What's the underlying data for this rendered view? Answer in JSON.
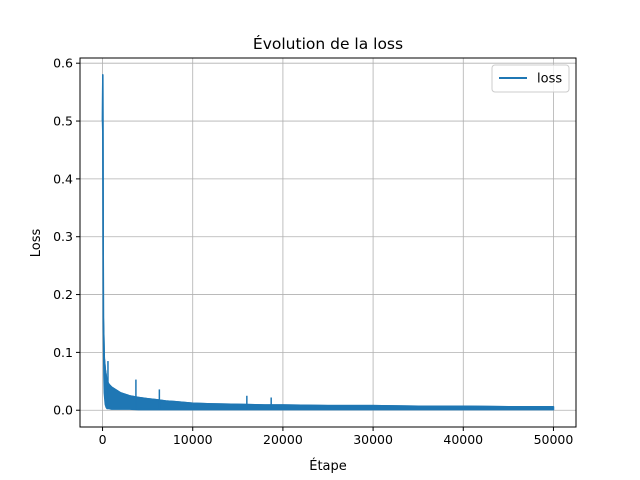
{
  "chart_data": {
    "type": "line",
    "title": "Évolution de la loss",
    "xlabel": "Étape",
    "ylabel": "Loss",
    "xlim": [
      -2500,
      52500
    ],
    "ylim": [
      -0.029,
      0.609
    ],
    "xticks": [
      0,
      10000,
      20000,
      30000,
      40000,
      50000
    ],
    "xtick_labels": [
      "0",
      "10000",
      "20000",
      "30000",
      "40000",
      "50000"
    ],
    "yticks": [
      0.0,
      0.1,
      0.2,
      0.3,
      0.4,
      0.5,
      0.6
    ],
    "ytick_labels": [
      "0.0",
      "0.1",
      "0.2",
      "0.3",
      "0.4",
      "0.5",
      "0.6"
    ],
    "grid": true,
    "legend_position": "top-right",
    "series": [
      {
        "name": "loss",
        "color": "#1f77b4",
        "x": [
          0,
          25,
          50,
          75,
          100,
          150,
          200,
          300,
          400,
          500,
          700,
          1000,
          1500,
          2000,
          3000,
          4000,
          5000,
          6000,
          7000,
          8000,
          10000,
          12000,
          15000,
          18000,
          20000,
          25000,
          30000,
          35000,
          40000,
          45000,
          50000
        ],
        "y": [
          0.5,
          0.58,
          0.45,
          0.3,
          0.16,
          0.12,
          0.09,
          0.07,
          0.06,
          0.05,
          0.045,
          0.04,
          0.035,
          0.03,
          0.025,
          0.022,
          0.02,
          0.018,
          0.016,
          0.015,
          0.012,
          0.011,
          0.01,
          0.009,
          0.009,
          0.008,
          0.008,
          0.007,
          0.007,
          0.006,
          0.006
        ],
        "y_min": [
          0.5,
          0.48,
          0.38,
          0.22,
          0.14,
          0.06,
          0.03,
          0.01,
          0.005,
          0.003,
          0.003,
          0.002,
          0.002,
          0.002,
          0.002,
          0.001,
          0.001,
          0.001,
          0.001,
          0.001,
          0.001,
          0.001,
          0.001,
          0.001,
          0.001,
          0.001,
          0.001,
          0.001,
          0.001,
          0.001,
          0.001
        ],
        "spikes": [
          {
            "x": 600,
            "y": 0.085
          },
          {
            "x": 3700,
            "y": 0.053
          },
          {
            "x": 6300,
            "y": 0.036
          },
          {
            "x": 16000,
            "y": 0.025
          },
          {
            "x": 18700,
            "y": 0.022
          }
        ]
      }
    ]
  }
}
